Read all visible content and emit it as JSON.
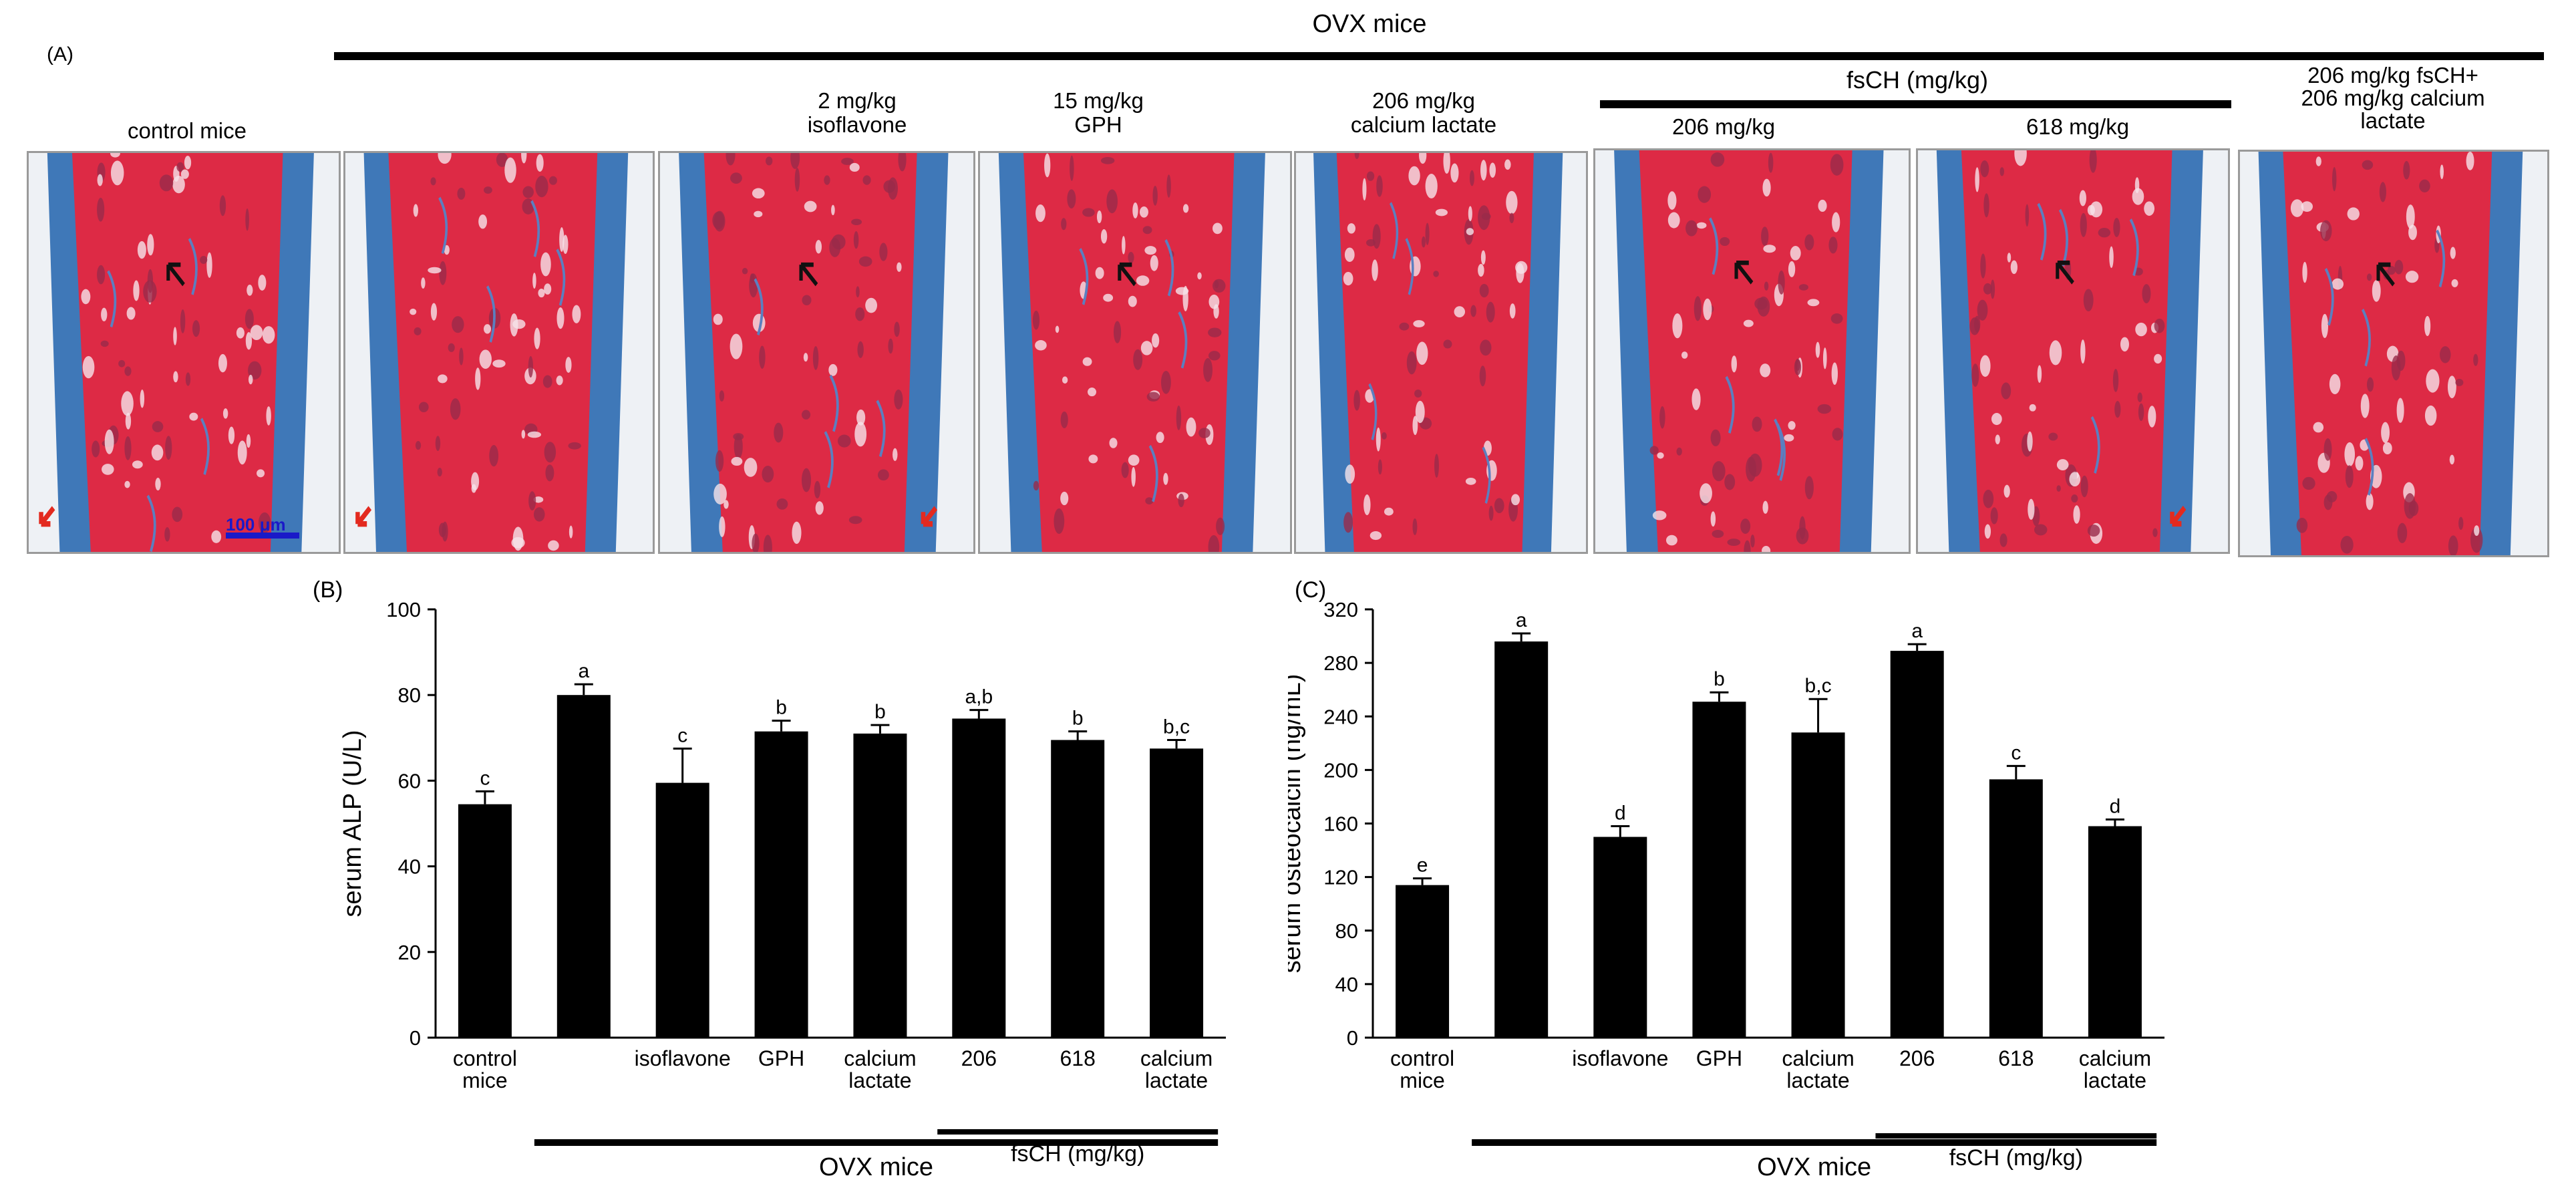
{
  "panel_a": {
    "letter": "(A)",
    "ovx_title": "OVX mice",
    "fsch_title": "fsCH (mg/kg)",
    "scale_bar": "100 μm",
    "images": [
      {
        "lines": [
          "control mice"
        ]
      },
      {
        "lines": []
      },
      {
        "lines": [
          "2 mg/kg",
          "isoflavone"
        ]
      },
      {
        "lines": [
          "15 mg/kg",
          "GPH"
        ]
      },
      {
        "lines": [
          "206 mg/kg",
          "calcium lactate"
        ]
      },
      {
        "lines": [
          "206 mg/kg"
        ]
      },
      {
        "lines": [
          "618 mg/kg"
        ]
      },
      {
        "lines": [
          "206 mg/kg fsCH+",
          "206 mg/kg calcium",
          "lactate"
        ]
      }
    ]
  },
  "chart_data": [
    {
      "type": "bar",
      "panel": "(B)",
      "ylabel": "serum ALP (U/L)",
      "ylim": [
        0,
        100
      ],
      "yticks": [
        0,
        20,
        40,
        60,
        80,
        100
      ],
      "categories": [
        [
          "control",
          "mice"
        ],
        [
          ""
        ],
        [
          "isoflavone"
        ],
        [
          "GPH"
        ],
        [
          "calcium",
          "lactate"
        ],
        [
          "206"
        ],
        [
          "618"
        ],
        [
          "calcium",
          "lactate"
        ]
      ],
      "values": [
        54.5,
        80,
        59.5,
        71.5,
        71,
        74.5,
        69.5,
        67.5
      ],
      "errors": [
        3,
        2.5,
        8,
        2.5,
        2,
        2,
        2,
        2
      ],
      "letters": [
        "c",
        "a",
        "c",
        "b",
        "b",
        "a,b",
        "b",
        "b,c"
      ],
      "group_labels": {
        "ovx": "OVX mice",
        "fsch": "fsCH (mg/kg)"
      }
    },
    {
      "type": "bar",
      "panel": "(C)",
      "ylabel": "serum osteocalcin (ng/mL)",
      "ylim": [
        0,
        320
      ],
      "yticks": [
        0,
        40,
        80,
        120,
        160,
        200,
        240,
        280,
        320
      ],
      "categories": [
        [
          "control",
          "mice"
        ],
        [
          ""
        ],
        [
          "isoflavone"
        ],
        [
          "GPH"
        ],
        [
          "calcium",
          "lactate"
        ],
        [
          "206"
        ],
        [
          "618"
        ],
        [
          "calcium",
          "lactate"
        ]
      ],
      "values": [
        114,
        296,
        150,
        251,
        228,
        289,
        193,
        158
      ],
      "errors": [
        5,
        6,
        8,
        7,
        25,
        5,
        10,
        5
      ],
      "letters": [
        "e",
        "a",
        "d",
        "b",
        "b,c",
        "a",
        "c",
        "d"
      ],
      "group_labels": {
        "ovx": "OVX mice",
        "fsch": "fsCH (mg/kg)"
      }
    }
  ]
}
